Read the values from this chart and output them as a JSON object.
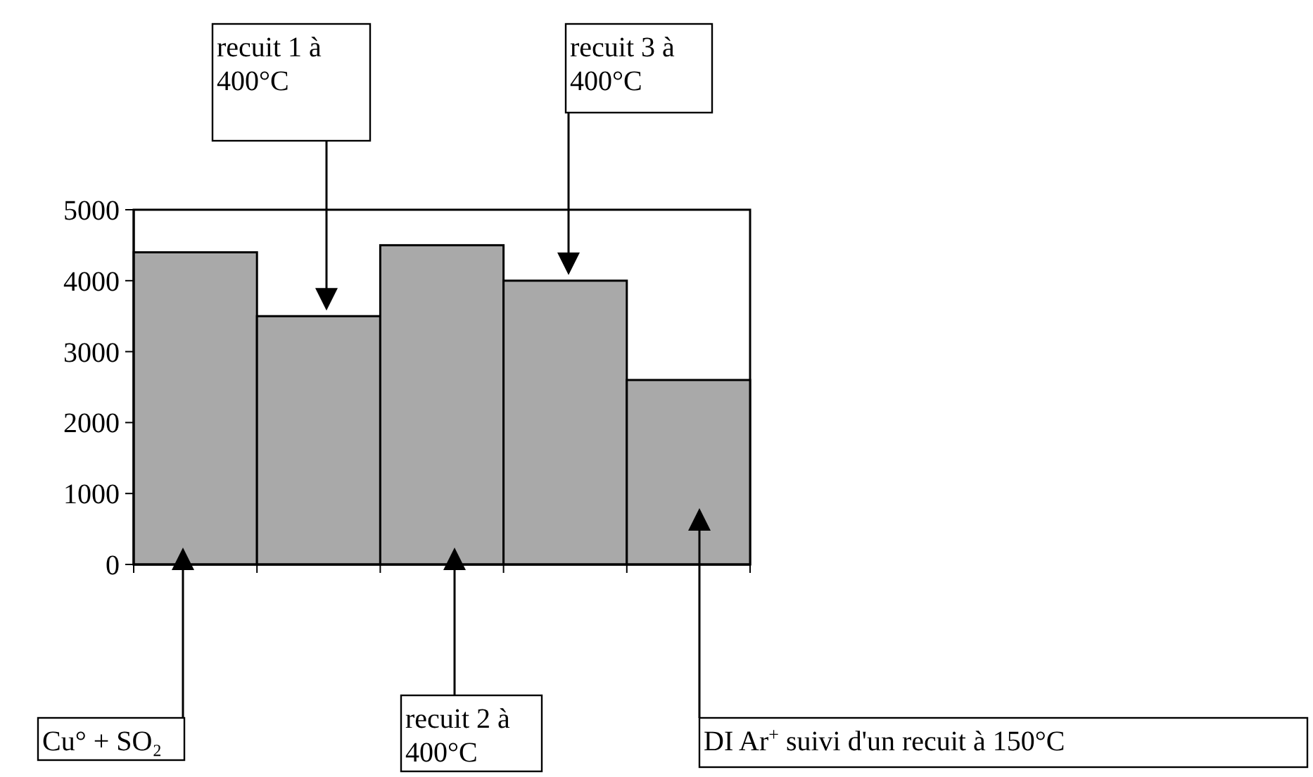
{
  "chart_data": {
    "type": "bar",
    "categories": [
      null,
      null,
      null,
      null,
      null
    ],
    "values": [
      4400,
      3500,
      4500,
      4000,
      2600
    ],
    "color": "#a9a9a9",
    "ylim": [
      0,
      5000
    ],
    "yticks": [
      0,
      1000,
      2000,
      3000,
      4000,
      5000
    ],
    "grid": false,
    "annotations": [
      "Cu° + SO₂",
      "recuit 1 à 400°C",
      "recuit 2 à 400°C",
      "recuit 3 à 400°C",
      "DI Ar$^{+}$ suivi d'un recuit à 150°C"
    ]
  }
}
